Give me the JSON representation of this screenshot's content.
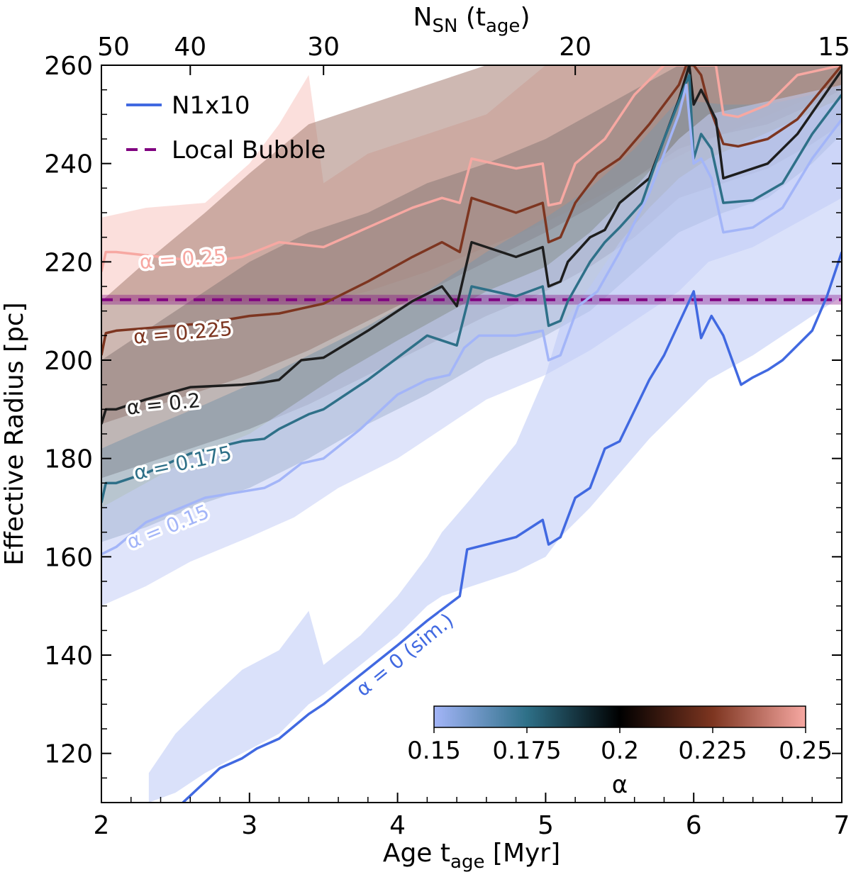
{
  "chart_data": {
    "type": "line",
    "xlabel": "Age t_age [Myr]",
    "ylabel": "Effective Radius [pc]",
    "xlabel_main": "Age t",
    "xlabel_sub": "age",
    "xlabel_unit": " [Myr]",
    "top_axis_main": "N",
    "top_axis_sub": "SN",
    "top_axis_paren_open": " (t",
    "top_axis_paren_sub": "age",
    "top_axis_paren_close": ")",
    "xlim": [
      2,
      7
    ],
    "ylim": [
      110,
      260
    ],
    "x_ticks": [
      2,
      3,
      4,
      5,
      6,
      7
    ],
    "x_tick_labels": [
      "2",
      "3",
      "4",
      "5",
      "6",
      "7"
    ],
    "y_ticks": [
      120,
      140,
      160,
      180,
      200,
      220,
      240,
      260
    ],
    "y_tick_labels": [
      "120",
      "140",
      "160",
      "180",
      "200",
      "220",
      "240",
      "260"
    ],
    "top_ticks": [
      {
        "age": 2.0,
        "label": "50"
      },
      {
        "age": 2.6,
        "label": "40"
      },
      {
        "age": 3.5,
        "label": "30"
      },
      {
        "age": 5.2,
        "label": "20"
      },
      {
        "age": 7.0,
        "label": "15"
      }
    ],
    "legend": [
      {
        "label": "N1x10",
        "style": "solid",
        "color": "#4169e1"
      },
      {
        "label": "Local Bubble",
        "style": "dashed",
        "color": "#800080"
      }
    ],
    "local_bubble": {
      "value": 212.3,
      "band": [
        211.3,
        213.3
      ],
      "color": "#800080"
    },
    "series": [
      {
        "name": "α = 0 (sim.)",
        "label": "α = 0 (sim.)",
        "alpha": 0,
        "color": "#4169e1",
        "band_color": "#bcc8f5",
        "label_pos": {
          "x": 4.05,
          "y": 140,
          "angle": -39
        },
        "x": [
          2.55,
          2.8,
          2.95,
          3.05,
          3.2,
          3.4,
          3.5,
          3.75,
          4.0,
          4.2,
          4.42,
          4.47,
          4.8,
          4.98,
          5.02,
          5.1,
          5.2,
          5.3,
          5.4,
          5.5,
          5.7,
          5.8,
          6.0,
          6.05,
          6.12,
          6.2,
          6.32,
          6.4,
          6.5,
          6.6,
          6.8,
          6.9,
          7.0
        ],
        "y": [
          110,
          117,
          119,
          121,
          123,
          128,
          130,
          136,
          142,
          147,
          152,
          161.5,
          164,
          167.5,
          162.5,
          164,
          172,
          174,
          182,
          183.5,
          196,
          201,
          214,
          204.5,
          209,
          205,
          195,
          196.5,
          198,
          200,
          206,
          213,
          222
        ],
        "band_x": [
          2.32,
          2.5,
          2.7,
          2.95,
          3.2,
          3.4,
          3.5,
          3.75,
          4.0,
          4.2,
          4.3,
          4.5,
          4.8,
          5.0,
          5.1,
          5.3,
          5.5,
          5.7,
          5.9,
          6.1,
          6.4,
          6.7,
          6.9,
          7.0
        ],
        "band_lower": [
          110,
          112,
          116,
          120,
          124,
          130,
          132,
          138,
          144,
          150,
          152,
          154,
          157,
          160,
          164,
          170,
          177,
          184,
          190,
          196,
          201,
          207,
          211,
          213
        ],
        "band_upper": [
          116,
          124,
          130,
          137,
          141,
          149,
          138,
          144,
          152,
          160,
          165,
          172,
          183,
          197,
          207,
          215,
          224,
          231,
          237,
          241,
          245,
          249,
          252,
          253
        ]
      },
      {
        "name": "α = 0.15",
        "label": "α = 0.15",
        "alpha": 0.15,
        "color": "#a3b5f8",
        "band_color": "#c4cdf5",
        "label_pos": {
          "x": 2.45,
          "y": 166,
          "angle": -22
        },
        "x": [
          2.0,
          2.1,
          2.3,
          2.7,
          2.9,
          3.1,
          3.2,
          3.35,
          3.5,
          3.75,
          4.0,
          4.2,
          4.35,
          4.45,
          4.55,
          4.8,
          4.98,
          5.02,
          5.1,
          5.22,
          5.35,
          5.5,
          5.7,
          5.9,
          5.95,
          6.0,
          6.05,
          6.12,
          6.2,
          6.4,
          6.6,
          6.8,
          7.0
        ],
        "y": [
          160.5,
          162,
          167,
          172,
          173,
          174,
          175.5,
          179,
          180,
          186,
          193,
          196,
          197,
          202.5,
          205,
          205,
          206,
          200,
          201,
          211,
          214,
          222,
          234,
          250,
          256,
          240,
          241,
          237,
          226,
          227,
          231,
          241,
          249
        ],
        "band_x": [
          2.0,
          2.3,
          2.6,
          3.0,
          3.3,
          3.6,
          4.0,
          4.3,
          4.6,
          5.0,
          5.3,
          5.6,
          5.9,
          6.1,
          6.4,
          6.7,
          7.0
        ],
        "band_lower": [
          150,
          154,
          159,
          164,
          168,
          174,
          180,
          186,
          192,
          197,
          202,
          208,
          214,
          220,
          223,
          228,
          233
        ],
        "band_upper": [
          170,
          175,
          180,
          185,
          191,
          197,
          204,
          209,
          214,
          219,
          226,
          235,
          245,
          250,
          252,
          254,
          256
        ]
      },
      {
        "name": "α = 0.175",
        "label": "α = 0.175",
        "alpha": 0.175,
        "color": "#2e7088",
        "band_color": "#7d96a8",
        "label_pos": {
          "x": 2.55,
          "y": 179,
          "angle": -12
        },
        "x": [
          2.0,
          2.03,
          2.1,
          2.3,
          2.6,
          2.95,
          3.1,
          3.2,
          3.4,
          3.5,
          3.8,
          4.2,
          4.4,
          4.5,
          4.8,
          4.98,
          5.02,
          5.1,
          5.15,
          5.3,
          5.4,
          5.5,
          5.65,
          5.8,
          5.97,
          6.0,
          6.05,
          6.12,
          6.2,
          6.4,
          6.6,
          6.8,
          7.0
        ],
        "y": [
          171,
          175,
          175,
          177,
          181,
          183.5,
          184,
          186,
          189,
          190,
          196,
          205,
          203,
          215,
          213,
          215,
          207,
          208,
          212,
          220,
          224,
          227,
          232,
          245,
          258,
          241,
          246,
          243,
          232,
          232.5,
          236,
          246,
          254
        ],
        "band_x": [
          2.0,
          2.3,
          2.7,
          3.0,
          3.4,
          3.8,
          4.2,
          4.6,
          5.0,
          5.3,
          5.6,
          5.9,
          6.2,
          6.5,
          6.8,
          7.0
        ],
        "band_lower": [
          163,
          166,
          171,
          174,
          180,
          187,
          193,
          200,
          205,
          210,
          218,
          226,
          230,
          233,
          240,
          246
        ],
        "band_upper": [
          182,
          186,
          191,
          195,
          201,
          207,
          214,
          222,
          229,
          235,
          243,
          253,
          252,
          252,
          254,
          256
        ]
      },
      {
        "name": "α = 0.2",
        "label": "α = 0.2",
        "alpha": 0.2,
        "color": "#1e1e1e",
        "band_color": "#8a7a78",
        "label_pos": {
          "x": 2.42,
          "y": 191,
          "angle": -6
        },
        "x": [
          2.0,
          2.03,
          2.1,
          2.3,
          2.6,
          2.95,
          3.1,
          3.2,
          3.35,
          3.5,
          3.8,
          4.1,
          4.3,
          4.4,
          4.5,
          4.8,
          4.98,
          5.02,
          5.1,
          5.15,
          5.3,
          5.4,
          5.5,
          5.7,
          5.9,
          5.97,
          6.0,
          6.05,
          6.15,
          6.2,
          6.3,
          6.5,
          6.7,
          7.0
        ],
        "y": [
          187,
          190,
          190,
          192,
          194.5,
          195,
          195.5,
          196,
          200,
          200.5,
          206,
          212,
          215,
          211,
          224,
          221,
          223,
          215,
          216,
          220,
          225,
          226.5,
          232,
          237,
          253,
          260,
          252,
          255,
          249,
          237,
          238,
          240,
          246,
          259
        ],
        "band_x": [
          2.0,
          2.3,
          2.7,
          3.0,
          3.4,
          3.8,
          4.2,
          4.6,
          5.0,
          5.3,
          5.6,
          5.9,
          6.2,
          6.5,
          6.8,
          7.0
        ],
        "band_lower": [
          176,
          179,
          183,
          186,
          191,
          197,
          203,
          209,
          214,
          219,
          225,
          233,
          236,
          239,
          244,
          248
        ],
        "band_upper": [
          200,
          206,
          214,
          220,
          226,
          230,
          236,
          240,
          245,
          250,
          255,
          260,
          260,
          260,
          260,
          260
        ]
      },
      {
        "name": "α = 0.225",
        "label": "α = 0.225",
        "alpha": 0.225,
        "color": "#7d3520",
        "band_color": "#a57e73",
        "label_pos": {
          "x": 2.55,
          "y": 205.5,
          "angle": -5
        },
        "x": [
          2.0,
          2.03,
          2.1,
          2.3,
          2.7,
          3.0,
          3.2,
          3.35,
          3.5,
          3.8,
          4.1,
          4.3,
          4.42,
          4.5,
          4.8,
          4.98,
          5.02,
          5.1,
          5.2,
          5.35,
          5.5,
          5.7,
          5.9,
          5.95,
          6.0,
          6.05,
          6.1,
          6.15,
          6.2,
          6.3,
          6.5,
          6.7,
          7.0
        ],
        "y": [
          201,
          205.5,
          206,
          206.5,
          207.5,
          209,
          209.5,
          210.5,
          211.5,
          216,
          221,
          224,
          222,
          233,
          230,
          232,
          224,
          225,
          232,
          238,
          241,
          248,
          256,
          260,
          260,
          258,
          252,
          248,
          244,
          243.5,
          245,
          249,
          260
        ],
        "band_x": [
          2.0,
          2.3,
          2.7,
          3.0,
          3.4,
          3.8,
          4.2,
          4.6,
          5.0,
          5.3,
          5.6,
          5.9,
          6.2,
          6.5,
          6.8,
          7.0
        ],
        "band_lower": [
          187,
          190,
          194,
          197,
          202,
          208,
          214,
          220,
          226,
          231,
          237,
          243,
          246,
          248,
          252,
          255
        ],
        "band_upper": [
          212,
          220,
          230,
          238,
          248,
          252,
          256,
          260,
          260,
          260,
          260,
          260,
          260,
          260,
          260,
          260
        ]
      },
      {
        "name": "α = 0.25",
        "label": "α = 0.25",
        "alpha": 0.25,
        "color": "#f7a8a2",
        "band_color": "#f7c4c0",
        "label_pos": {
          "x": 2.55,
          "y": 220.5,
          "angle": -4
        },
        "x": [
          2.0,
          2.03,
          2.1,
          2.4,
          2.7,
          2.95,
          3.2,
          3.35,
          3.5,
          3.8,
          4.1,
          4.3,
          4.42,
          4.5,
          4.8,
          4.98,
          5.02,
          5.1,
          5.2,
          5.4,
          5.6,
          5.8,
          5.95,
          6.0,
          6.1,
          6.15,
          6.2,
          6.3,
          6.5,
          6.7,
          7.0
        ],
        "y": [
          218,
          222,
          222,
          221,
          220,
          221,
          224,
          223.5,
          223,
          227,
          231,
          233,
          232,
          241,
          239,
          240,
          231.5,
          232,
          240,
          245,
          254,
          260,
          260,
          260,
          260,
          260,
          250,
          249.5,
          252,
          258,
          260
        ],
        "band_x": [
          2.0,
          2.3,
          2.7,
          3.0,
          3.2,
          3.4,
          3.5,
          3.8,
          4.2,
          4.6,
          5.0,
          5.4,
          5.8,
          6.2,
          6.6,
          7.0
        ],
        "band_lower": [
          212,
          212,
          212,
          212,
          212,
          212,
          212,
          214,
          218,
          223,
          228,
          234,
          240,
          246,
          251,
          256
        ],
        "band_upper": [
          229,
          231,
          232,
          240,
          248,
          258,
          236,
          242,
          246,
          250,
          260,
          260,
          260,
          260,
          260,
          260
        ]
      }
    ],
    "colorbar": {
      "label": "α",
      "range": [
        0.15,
        0.25
      ],
      "ticks": [
        0.15,
        0.175,
        0.2,
        0.225,
        0.25
      ],
      "tick_labels": [
        "0.15",
        "0.175",
        "0.2",
        "0.225",
        "0.25"
      ],
      "colors": [
        "#a3b5f8",
        "#2e7088",
        "#000000",
        "#7d3520",
        "#f7a8a2"
      ]
    }
  }
}
